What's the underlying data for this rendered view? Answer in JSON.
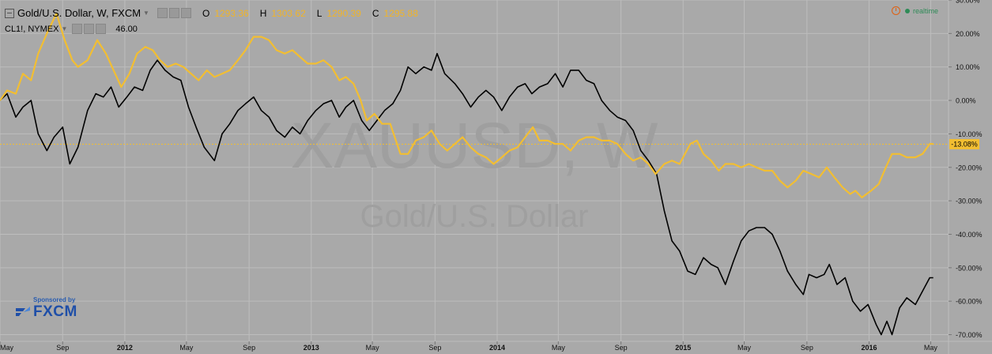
{
  "header": {
    "title": "Gold/U.S. Dollar, W, FXCM",
    "ohlc": [
      {
        "k": "O",
        "v": "1293.36"
      },
      {
        "k": "H",
        "v": "1303.62"
      },
      {
        "k": "L",
        "v": "1290.39"
      },
      {
        "k": "C",
        "v": "1295.88"
      }
    ],
    "compare_symbol": "CL1!, NYMEX",
    "compare_value": "46.00"
  },
  "realtime_label": "realtime",
  "sponsor": {
    "label": "Sponsored by",
    "name": "FXCM"
  },
  "colors": {
    "background": "#a9a9a9",
    "gold_series": "#f2be32",
    "oil_series": "#000000",
    "grid": "#bdbdbd",
    "price_line": "#f2be32"
  },
  "chart_data": {
    "type": "line",
    "watermark": {
      "symbol": "XAUUSD, W",
      "description": "Gold/U.S. Dollar"
    },
    "y_axis": {
      "unit": "%",
      "ylim": [
        -72,
        30
      ],
      "ticks": [
        "30.00%",
        "20.00%",
        "10.00%",
        "0.00%",
        "-10.00%",
        "-20.00%",
        "-30.00%",
        "-40.00%",
        "-50.00%",
        "-60.00%",
        "-70.00%"
      ],
      "tick_values": [
        30,
        20,
        10,
        0,
        -10,
        -20,
        -30,
        -40,
        -50,
        -60,
        -70
      ],
      "position": "right"
    },
    "x_axis": {
      "labels": [
        "May",
        "Sep",
        "2012",
        "May",
        "Sep",
        "2013",
        "May",
        "Sep",
        "2014",
        "May",
        "Sep",
        "2015",
        "May",
        "Sep",
        "2016",
        "May"
      ],
      "label_dates": [
        "2011-05-01",
        "2011-09-01",
        "2012-01-01",
        "2012-05-01",
        "2012-09-01",
        "2013-01-01",
        "2013-05-01",
        "2013-09-01",
        "2014-01-01",
        "2014-05-01",
        "2014-09-01",
        "2015-01-01",
        "2015-05-01",
        "2015-09-01",
        "2016-01-01",
        "2016-05-01"
      ],
      "range": [
        "2011-05-01",
        "2016-06-05"
      ]
    },
    "current_value_label": "-13.08%",
    "current_value": -13.08,
    "grid": true,
    "series": [
      {
        "color": "#f2be32",
        "points": [
          [
            "2011-05-01",
            0
          ],
          [
            "2011-05-15",
            3
          ],
          [
            "2011-06-01",
            2
          ],
          [
            "2011-06-15",
            8
          ],
          [
            "2011-07-01",
            6
          ],
          [
            "2011-07-15",
            14
          ],
          [
            "2011-08-01",
            20
          ],
          [
            "2011-08-20",
            26
          ],
          [
            "2011-09-05",
            18
          ],
          [
            "2011-09-20",
            12
          ],
          [
            "2011-10-01",
            10
          ],
          [
            "2011-10-20",
            12
          ],
          [
            "2011-11-08",
            18
          ],
          [
            "2011-11-25",
            14
          ],
          [
            "2011-12-10",
            9
          ],
          [
            "2011-12-25",
            4
          ],
          [
            "2012-01-10",
            8
          ],
          [
            "2012-01-25",
            14
          ],
          [
            "2012-02-10",
            16
          ],
          [
            "2012-02-25",
            15
          ],
          [
            "2012-03-10",
            12
          ],
          [
            "2012-03-25",
            10
          ],
          [
            "2012-04-10",
            11
          ],
          [
            "2012-04-25",
            10
          ],
          [
            "2012-05-10",
            8
          ],
          [
            "2012-05-25",
            6
          ],
          [
            "2012-06-10",
            9
          ],
          [
            "2012-06-25",
            7
          ],
          [
            "2012-07-10",
            8
          ],
          [
            "2012-07-25",
            9
          ],
          [
            "2012-08-10",
            12
          ],
          [
            "2012-08-25",
            15
          ],
          [
            "2012-09-10",
            19
          ],
          [
            "2012-09-25",
            19
          ],
          [
            "2012-10-10",
            18
          ],
          [
            "2012-10-25",
            15
          ],
          [
            "2012-11-10",
            14
          ],
          [
            "2012-11-25",
            15
          ],
          [
            "2012-12-10",
            13
          ],
          [
            "2012-12-25",
            11
          ],
          [
            "2013-01-10",
            11
          ],
          [
            "2013-01-25",
            12
          ],
          [
            "2013-02-10",
            10
          ],
          [
            "2013-02-25",
            6
          ],
          [
            "2013-03-10",
            7
          ],
          [
            "2013-03-25",
            5
          ],
          [
            "2013-04-08",
            0
          ],
          [
            "2013-04-20",
            -6
          ],
          [
            "2013-05-05",
            -4
          ],
          [
            "2013-05-20",
            -7
          ],
          [
            "2013-06-05",
            -7
          ],
          [
            "2013-06-25",
            -16
          ],
          [
            "2013-07-10",
            -16
          ],
          [
            "2013-07-25",
            -12
          ],
          [
            "2013-08-10",
            -11
          ],
          [
            "2013-08-25",
            -9
          ],
          [
            "2013-09-10",
            -13
          ],
          [
            "2013-09-25",
            -15
          ],
          [
            "2013-10-10",
            -13
          ],
          [
            "2013-10-25",
            -11
          ],
          [
            "2013-11-10",
            -14
          ],
          [
            "2013-11-25",
            -16
          ],
          [
            "2013-12-10",
            -17
          ],
          [
            "2013-12-25",
            -19
          ],
          [
            "2014-01-10",
            -17
          ],
          [
            "2014-01-25",
            -15
          ],
          [
            "2014-02-10",
            -14
          ],
          [
            "2014-02-25",
            -11
          ],
          [
            "2014-03-12",
            -8
          ],
          [
            "2014-03-25",
            -12
          ],
          [
            "2014-04-10",
            -12
          ],
          [
            "2014-04-25",
            -13
          ],
          [
            "2014-05-10",
            -13
          ],
          [
            "2014-05-25",
            -15
          ],
          [
            "2014-06-10",
            -12
          ],
          [
            "2014-06-25",
            -11
          ],
          [
            "2014-07-10",
            -11
          ],
          [
            "2014-07-25",
            -12
          ],
          [
            "2014-08-10",
            -12
          ],
          [
            "2014-08-25",
            -13
          ],
          [
            "2014-09-10",
            -16
          ],
          [
            "2014-09-25",
            -18
          ],
          [
            "2014-10-10",
            -17
          ],
          [
            "2014-10-25",
            -19
          ],
          [
            "2014-11-08",
            -22
          ],
          [
            "2014-11-25",
            -19
          ],
          [
            "2014-12-10",
            -18
          ],
          [
            "2014-12-25",
            -19
          ],
          [
            "2015-01-15",
            -13
          ],
          [
            "2015-01-28",
            -12
          ],
          [
            "2015-02-10",
            -16
          ],
          [
            "2015-02-25",
            -18
          ],
          [
            "2015-03-12",
            -21
          ],
          [
            "2015-03-25",
            -19
          ],
          [
            "2015-04-10",
            -19
          ],
          [
            "2015-04-25",
            -20
          ],
          [
            "2015-05-10",
            -19
          ],
          [
            "2015-05-25",
            -20
          ],
          [
            "2015-06-10",
            -21
          ],
          [
            "2015-06-25",
            -21
          ],
          [
            "2015-07-10",
            -24
          ],
          [
            "2015-07-25",
            -26
          ],
          [
            "2015-08-10",
            -24
          ],
          [
            "2015-08-25",
            -21
          ],
          [
            "2015-09-10",
            -22
          ],
          [
            "2015-09-25",
            -23
          ],
          [
            "2015-10-10",
            -20
          ],
          [
            "2015-10-25",
            -23
          ],
          [
            "2015-11-10",
            -26
          ],
          [
            "2015-11-25",
            -28
          ],
          [
            "2015-12-05",
            -27
          ],
          [
            "2015-12-18",
            -29
          ],
          [
            "2016-01-05",
            -27
          ],
          [
            "2016-01-20",
            -25
          ],
          [
            "2016-02-03",
            -20
          ],
          [
            "2016-02-15",
            -16
          ],
          [
            "2016-03-01",
            -16
          ],
          [
            "2016-03-15",
            -17
          ],
          [
            "2016-04-01",
            -17
          ],
          [
            "2016-04-15",
            -16
          ],
          [
            "2016-04-29",
            -13
          ],
          [
            "2016-05-06",
            -13
          ]
        ]
      },
      {
        "color": "#000000",
        "points": [
          [
            "2011-05-01",
            0
          ],
          [
            "2011-05-15",
            2
          ],
          [
            "2011-06-01",
            -5
          ],
          [
            "2011-06-15",
            -2
          ],
          [
            "2011-07-01",
            0
          ],
          [
            "2011-07-15",
            -10
          ],
          [
            "2011-08-01",
            -15
          ],
          [
            "2011-08-15",
            -11
          ],
          [
            "2011-09-01",
            -8
          ],
          [
            "2011-09-15",
            -19
          ],
          [
            "2011-10-01",
            -14
          ],
          [
            "2011-10-20",
            -3
          ],
          [
            "2011-11-05",
            2
          ],
          [
            "2011-11-20",
            1
          ],
          [
            "2011-12-05",
            4
          ],
          [
            "2011-12-20",
            -2
          ],
          [
            "2012-01-05",
            1
          ],
          [
            "2012-01-20",
            4
          ],
          [
            "2012-02-05",
            3
          ],
          [
            "2012-02-20",
            9
          ],
          [
            "2012-03-05",
            12
          ],
          [
            "2012-03-20",
            9
          ],
          [
            "2012-04-05",
            7
          ],
          [
            "2012-04-20",
            6
          ],
          [
            "2012-05-05",
            -2
          ],
          [
            "2012-05-20",
            -8
          ],
          [
            "2012-06-05",
            -14
          ],
          [
            "2012-06-25",
            -18
          ],
          [
            "2012-07-10",
            -10
          ],
          [
            "2012-07-25",
            -7
          ],
          [
            "2012-08-10",
            -3
          ],
          [
            "2012-08-25",
            -1
          ],
          [
            "2012-09-10",
            1
          ],
          [
            "2012-09-25",
            -3
          ],
          [
            "2012-10-10",
            -5
          ],
          [
            "2012-10-25",
            -9
          ],
          [
            "2012-11-10",
            -11
          ],
          [
            "2012-11-25",
            -8
          ],
          [
            "2012-12-10",
            -10
          ],
          [
            "2012-12-25",
            -6
          ],
          [
            "2013-01-10",
            -3
          ],
          [
            "2013-01-25",
            -1
          ],
          [
            "2013-02-10",
            0
          ],
          [
            "2013-02-25",
            -5
          ],
          [
            "2013-03-10",
            -2
          ],
          [
            "2013-03-25",
            0
          ],
          [
            "2013-04-10",
            -6
          ],
          [
            "2013-04-25",
            -9
          ],
          [
            "2013-05-10",
            -6
          ],
          [
            "2013-05-25",
            -3
          ],
          [
            "2013-06-10",
            -1
          ],
          [
            "2013-06-25",
            3
          ],
          [
            "2013-07-10",
            10
          ],
          [
            "2013-07-25",
            8
          ],
          [
            "2013-08-10",
            10
          ],
          [
            "2013-08-25",
            9
          ],
          [
            "2013-09-05",
            14
          ],
          [
            "2013-09-20",
            8
          ],
          [
            "2013-10-10",
            5
          ],
          [
            "2013-10-25",
            2
          ],
          [
            "2013-11-10",
            -2
          ],
          [
            "2013-11-25",
            1
          ],
          [
            "2013-12-10",
            3
          ],
          [
            "2013-12-25",
            1
          ],
          [
            "2014-01-10",
            -3
          ],
          [
            "2014-01-25",
            1
          ],
          [
            "2014-02-10",
            4
          ],
          [
            "2014-02-25",
            5
          ],
          [
            "2014-03-10",
            2
          ],
          [
            "2014-03-25",
            4
          ],
          [
            "2014-04-10",
            5
          ],
          [
            "2014-04-25",
            8
          ],
          [
            "2014-05-10",
            4
          ],
          [
            "2014-05-25",
            9
          ],
          [
            "2014-06-10",
            9
          ],
          [
            "2014-06-25",
            6
          ],
          [
            "2014-07-10",
            5
          ],
          [
            "2014-07-25",
            0
          ],
          [
            "2014-08-10",
            -3
          ],
          [
            "2014-08-25",
            -5
          ],
          [
            "2014-09-10",
            -6
          ],
          [
            "2014-09-25",
            -9
          ],
          [
            "2014-10-10",
            -15
          ],
          [
            "2014-10-25",
            -18
          ],
          [
            "2014-11-10",
            -22
          ],
          [
            "2014-11-25",
            -33
          ],
          [
            "2014-12-10",
            -42
          ],
          [
            "2014-12-25",
            -45
          ],
          [
            "2015-01-10",
            -51
          ],
          [
            "2015-01-25",
            -52
          ],
          [
            "2015-02-10",
            -47
          ],
          [
            "2015-02-25",
            -49
          ],
          [
            "2015-03-10",
            -50
          ],
          [
            "2015-03-25",
            -55
          ],
          [
            "2015-04-10",
            -48
          ],
          [
            "2015-04-25",
            -42
          ],
          [
            "2015-05-10",
            -39
          ],
          [
            "2015-05-25",
            -38
          ],
          [
            "2015-06-10",
            -38
          ],
          [
            "2015-06-25",
            -40
          ],
          [
            "2015-07-10",
            -45
          ],
          [
            "2015-07-25",
            -51
          ],
          [
            "2015-08-10",
            -55
          ],
          [
            "2015-08-25",
            -58
          ],
          [
            "2015-09-05",
            -52
          ],
          [
            "2015-09-20",
            -53
          ],
          [
            "2015-10-05",
            -52
          ],
          [
            "2015-10-15",
            -49
          ],
          [
            "2015-10-30",
            -55
          ],
          [
            "2015-11-15",
            -53
          ],
          [
            "2015-11-30",
            -60
          ],
          [
            "2015-12-15",
            -63
          ],
          [
            "2015-12-30",
            -61
          ],
          [
            "2016-01-15",
            -67
          ],
          [
            "2016-01-25",
            -70
          ],
          [
            "2016-02-05",
            -66
          ],
          [
            "2016-02-15",
            -70
          ],
          [
            "2016-03-01",
            -62
          ],
          [
            "2016-03-15",
            -59
          ],
          [
            "2016-04-01",
            -61
          ],
          [
            "2016-04-15",
            -57
          ],
          [
            "2016-04-29",
            -53
          ],
          [
            "2016-05-06",
            -53
          ]
        ]
      }
    ]
  }
}
